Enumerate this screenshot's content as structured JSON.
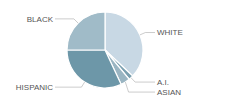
{
  "chart_data": {
    "type": "pie",
    "categories": [
      "WHITE",
      "A.I.",
      "ASIAN",
      "HISPANIC",
      "BLACK"
    ],
    "values": [
      37,
      2,
      4,
      32,
      25
    ],
    "colors": [
      "#c8d8e4",
      "#7a9faf",
      "#9ab5c2",
      "#6d97a8",
      "#a0bbc8"
    ]
  }
}
